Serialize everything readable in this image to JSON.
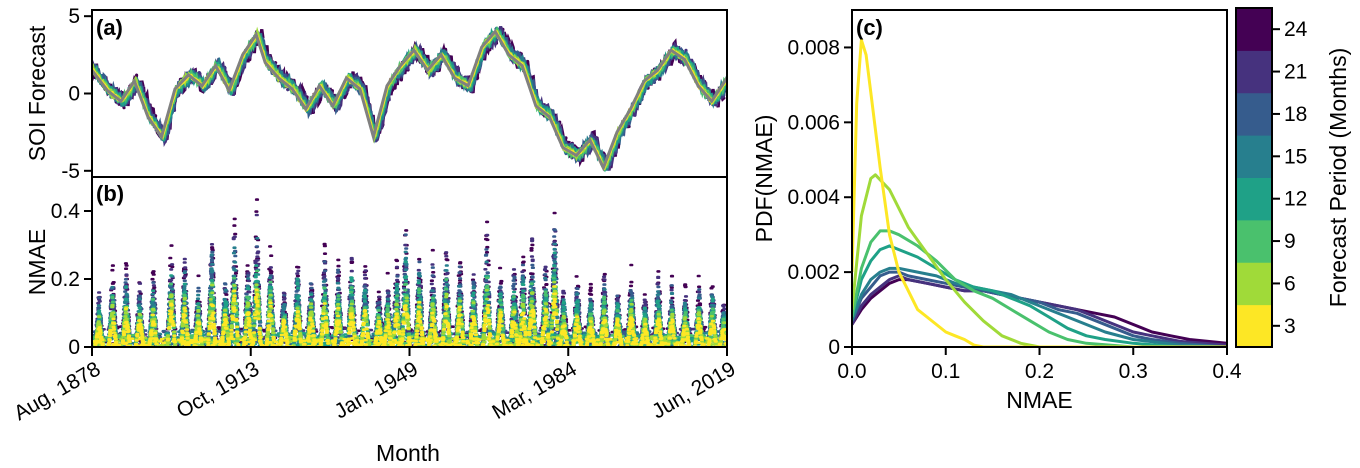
{
  "colors": {
    "observed": "#808080",
    "viridis": [
      "#fde725",
      "#a0da39",
      "#4ac16d",
      "#1fa187",
      "#277f8e",
      "#365c8d",
      "#46327e",
      "#440154"
    ]
  },
  "chart_data": [
    {
      "panel": "a",
      "panel_label": "(a)",
      "type": "line",
      "ylabel": "SOI Forecast",
      "xlabel": "",
      "ylim": [
        -5.4,
        5.4
      ],
      "yticks": [
        -5,
        0,
        5
      ],
      "ytick_labels": [
        "-5",
        "0",
        "5"
      ],
      "x_range": [
        "Aug, 1878",
        "Jun, 2019"
      ],
      "observed_series": {
        "x": [
          1878.6,
          1882,
          1885,
          1888,
          1891,
          1894,
          1897,
          1900,
          1903,
          1906,
          1909,
          1912,
          1915,
          1917,
          1920,
          1923,
          1926,
          1929,
          1932,
          1935,
          1938,
          1941,
          1944,
          1947,
          1950,
          1953,
          1956,
          1959,
          1962,
          1965,
          1968,
          1971,
          1974,
          1977,
          1980,
          1983,
          1986,
          1989,
          1992,
          1995,
          1998,
          2001,
          2004,
          2007,
          2010,
          2013,
          2016,
          2019.4
        ],
        "values": [
          1.5,
          0.2,
          -0.5,
          0.8,
          -1.5,
          -2.8,
          0.3,
          1.2,
          0.5,
          1.8,
          0.2,
          2.5,
          3.8,
          2.0,
          1.0,
          0.3,
          -1.0,
          0.5,
          -0.8,
          1.0,
          0.3,
          -2.8,
          0.5,
          1.8,
          2.8,
          1.5,
          2.5,
          1.0,
          0.5,
          3.0,
          4.0,
          2.5,
          1.8,
          -0.8,
          -1.5,
          -3.5,
          -4.0,
          -3.0,
          -4.8,
          -2.5,
          -1.0,
          0.8,
          1.5,
          2.8,
          2.2,
          0.5,
          -0.5,
          1.0
        ]
      },
      "forecast_periods": [
        3,
        6,
        9,
        12,
        15,
        18,
        21,
        24
      ]
    },
    {
      "panel": "b",
      "panel_label": "(b)",
      "type": "scatter",
      "ylabel": "NMAE",
      "xlabel": "Month",
      "ylim": [
        0,
        0.5
      ],
      "yticks": [
        0,
        0.2,
        0.4
      ],
      "ytick_labels": [
        "0",
        "0.2",
        "0.4"
      ],
      "x_tick_labels": [
        "Aug, 1878",
        "Oct, 1913",
        "Jan, 1949",
        "Mar, 1984",
        "Jun, 2019"
      ],
      "x_tick_years": [
        1878.6,
        1913.8,
        1949.0,
        1984.2,
        2019.4
      ],
      "x_range": [
        "Aug, 1878",
        "Jun, 2019"
      ],
      "peaks": [
        {
          "x": 1880,
          "y": 0.18
        },
        {
          "x": 1883,
          "y": 0.26
        },
        {
          "x": 1886,
          "y": 0.28
        },
        {
          "x": 1889,
          "y": 0.22
        },
        {
          "x": 1892,
          "y": 0.25
        },
        {
          "x": 1896,
          "y": 0.35
        },
        {
          "x": 1899,
          "y": 0.3
        },
        {
          "x": 1902,
          "y": 0.22
        },
        {
          "x": 1905,
          "y": 0.38
        },
        {
          "x": 1908,
          "y": 0.25
        },
        {
          "x": 1910,
          "y": 0.42
        },
        {
          "x": 1913,
          "y": 0.3
        },
        {
          "x": 1915,
          "y": 0.46
        },
        {
          "x": 1918,
          "y": 0.33
        },
        {
          "x": 1921,
          "y": 0.2
        },
        {
          "x": 1924,
          "y": 0.3
        },
        {
          "x": 1927,
          "y": 0.25
        },
        {
          "x": 1930,
          "y": 0.32
        },
        {
          "x": 1933,
          "y": 0.28
        },
        {
          "x": 1936,
          "y": 0.31
        },
        {
          "x": 1939,
          "y": 0.28
        },
        {
          "x": 1942,
          "y": 0.2
        },
        {
          "x": 1944,
          "y": 0.22
        },
        {
          "x": 1946,
          "y": 0.3
        },
        {
          "x": 1948,
          "y": 0.4
        },
        {
          "x": 1951,
          "y": 0.32
        },
        {
          "x": 1954,
          "y": 0.29
        },
        {
          "x": 1957,
          "y": 0.35
        },
        {
          "x": 1960,
          "y": 0.31
        },
        {
          "x": 1963,
          "y": 0.26
        },
        {
          "x": 1966,
          "y": 0.42
        },
        {
          "x": 1969,
          "y": 0.26
        },
        {
          "x": 1972,
          "y": 0.28
        },
        {
          "x": 1974,
          "y": 0.3
        },
        {
          "x": 1976,
          "y": 0.36
        },
        {
          "x": 1979,
          "y": 0.3
        },
        {
          "x": 1981,
          "y": 0.46
        },
        {
          "x": 1983,
          "y": 0.2
        },
        {
          "x": 1986,
          "y": 0.25
        },
        {
          "x": 1989,
          "y": 0.2
        },
        {
          "x": 1992,
          "y": 0.25
        },
        {
          "x": 1995,
          "y": 0.2
        },
        {
          "x": 1998,
          "y": 0.26
        },
        {
          "x": 2001,
          "y": 0.18
        },
        {
          "x": 2004,
          "y": 0.25
        },
        {
          "x": 2007,
          "y": 0.22
        },
        {
          "x": 2010,
          "y": 0.2
        },
        {
          "x": 2013,
          "y": 0.23
        },
        {
          "x": 2016,
          "y": 0.23
        },
        {
          "x": 2018.5,
          "y": 0.16
        }
      ]
    },
    {
      "panel": "c",
      "panel_label": "(c)",
      "type": "line",
      "xlabel": "NMAE",
      "ylabel": "PDF(NMAE)",
      "xlim": [
        0,
        0.4
      ],
      "ylim": [
        0,
        0.009
      ],
      "xticks": [
        0,
        0.1,
        0.2,
        0.3,
        0.4
      ],
      "xtick_labels": [
        "0.0",
        "0.1",
        "0.2",
        "0.3",
        "0.4"
      ],
      "yticks": [
        0,
        0.002,
        0.004,
        0.006,
        0.008
      ],
      "ytick_labels": [
        "0",
        "0.002",
        "0.004",
        "0.006",
        "0.008"
      ],
      "series": [
        {
          "period": 3,
          "x": [
            0,
            0.005,
            0.01,
            0.015,
            0.02,
            0.03,
            0.04,
            0.05,
            0.06,
            0.07,
            0.08,
            0.09,
            0.1,
            0.11,
            0.12,
            0.13,
            0.14,
            0.15,
            0.2,
            0.3,
            0.4
          ],
          "values": [
            0.002,
            0.0065,
            0.0082,
            0.0078,
            0.0068,
            0.0048,
            0.003,
            0.002,
            0.0015,
            0.001,
            0.0008,
            0.0006,
            0.0004,
            0.0003,
            0.0002,
            5e-05,
            0,
            0,
            0,
            0,
            0
          ]
        },
        {
          "period": 6,
          "x": [
            0,
            0.01,
            0.02,
            0.025,
            0.04,
            0.06,
            0.08,
            0.1,
            0.12,
            0.14,
            0.16,
            0.18,
            0.2,
            0.25,
            0.3,
            0.4
          ],
          "values": [
            0.001,
            0.0035,
            0.0045,
            0.0046,
            0.0042,
            0.0032,
            0.0025,
            0.0018,
            0.0012,
            0.0007,
            0.0003,
            0.0001,
            0,
            0,
            0,
            0
          ]
        },
        {
          "period": 9,
          "x": [
            0,
            0.01,
            0.02,
            0.03,
            0.04,
            0.05,
            0.07,
            0.09,
            0.11,
            0.13,
            0.15,
            0.17,
            0.19,
            0.21,
            0.23,
            0.25,
            0.3,
            0.4
          ],
          "values": [
            0.0008,
            0.0021,
            0.0028,
            0.0031,
            0.0031,
            0.003,
            0.0027,
            0.0023,
            0.0018,
            0.0015,
            0.0013,
            0.001,
            0.0007,
            0.0004,
            0.0002,
            0.0001,
            0,
            0
          ]
        },
        {
          "period": 12,
          "x": [
            0,
            0.01,
            0.02,
            0.03,
            0.04,
            0.05,
            0.07,
            0.09,
            0.11,
            0.13,
            0.15,
            0.17,
            0.19,
            0.21,
            0.23,
            0.25,
            0.27,
            0.3,
            0.35,
            0.4
          ],
          "values": [
            0.0008,
            0.0018,
            0.0023,
            0.0026,
            0.0027,
            0.0026,
            0.0024,
            0.0021,
            0.0018,
            0.0016,
            0.0015,
            0.0013,
            0.0011,
            0.0008,
            0.0005,
            0.0003,
            0.0002,
            0.0001,
            0,
            0
          ]
        },
        {
          "period": 15,
          "x": [
            0,
            0.01,
            0.02,
            0.03,
            0.04,
            0.05,
            0.07,
            0.09,
            0.11,
            0.13,
            0.15,
            0.17,
            0.19,
            0.21,
            0.23,
            0.25,
            0.27,
            0.3,
            0.35,
            0.4
          ],
          "values": [
            0.0007,
            0.0014,
            0.0018,
            0.002,
            0.0021,
            0.0021,
            0.002,
            0.0019,
            0.0017,
            0.0016,
            0.0015,
            0.0014,
            0.0012,
            0.001,
            0.0008,
            0.0006,
            0.0004,
            0.0002,
            5e-05,
            0
          ]
        },
        {
          "period": 18,
          "x": [
            0,
            0.01,
            0.02,
            0.03,
            0.04,
            0.05,
            0.06,
            0.08,
            0.1,
            0.12,
            0.14,
            0.16,
            0.18,
            0.2,
            0.22,
            0.24,
            0.26,
            0.28,
            0.3,
            0.32,
            0.35,
            0.4
          ],
          "values": [
            0.0007,
            0.0013,
            0.0016,
            0.0019,
            0.002,
            0.002,
            0.0019,
            0.0018,
            0.0017,
            0.0016,
            0.0015,
            0.0014,
            0.0013,
            0.0012,
            0.001,
            0.0009,
            0.0007,
            0.0005,
            0.0003,
            0.0002,
            0.0001,
            0
          ]
        },
        {
          "period": 21,
          "x": [
            0,
            0.01,
            0.02,
            0.03,
            0.04,
            0.05,
            0.06,
            0.08,
            0.1,
            0.12,
            0.14,
            0.16,
            0.18,
            0.2,
            0.22,
            0.24,
            0.26,
            0.28,
            0.3,
            0.32,
            0.35,
            0.4
          ],
          "values": [
            0.0006,
            0.0011,
            0.0014,
            0.0016,
            0.0018,
            0.0019,
            0.0018,
            0.0017,
            0.0016,
            0.0015,
            0.0015,
            0.0014,
            0.0013,
            0.0012,
            0.0011,
            0.001,
            0.0008,
            0.0006,
            0.0004,
            0.0003,
            0.00015,
            5e-05
          ]
        },
        {
          "period": 24,
          "x": [
            0,
            0.01,
            0.02,
            0.03,
            0.04,
            0.05,
            0.06,
            0.08,
            0.1,
            0.12,
            0.14,
            0.16,
            0.18,
            0.2,
            0.22,
            0.24,
            0.26,
            0.28,
            0.3,
            0.32,
            0.34,
            0.36,
            0.4
          ],
          "values": [
            0.0006,
            0.001,
            0.0013,
            0.0015,
            0.0017,
            0.0018,
            0.0018,
            0.0017,
            0.0016,
            0.0015,
            0.0015,
            0.0014,
            0.0013,
            0.0012,
            0.0011,
            0.001,
            0.0009,
            0.0008,
            0.0006,
            0.0004,
            0.0003,
            0.0002,
            0.0001
          ]
        }
      ]
    },
    {
      "panel": "colorbar",
      "type": "colorbar",
      "label": "Forecast Period (Months)",
      "periods": [
        3,
        6,
        9,
        12,
        15,
        18,
        21,
        24
      ],
      "tick_labels": [
        "3",
        "6",
        "9",
        "12",
        "15",
        "18",
        "21",
        "24"
      ]
    }
  ]
}
